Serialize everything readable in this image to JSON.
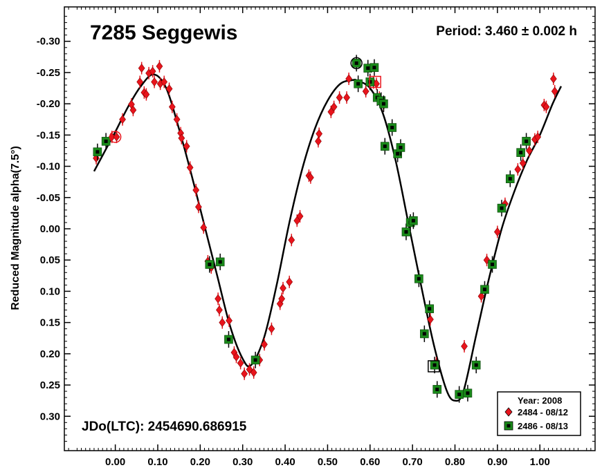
{
  "chart_data": {
    "type": "scatter",
    "title": "7285 Seggewis",
    "period_label": "Period: 3.460 ± 0.002 h",
    "epoch_label": "JDo(LTC): 2454690.686915",
    "ylabel": "Reduced Magnitude alpha(7.5°)",
    "xlabel": "",
    "xlim": [
      -0.12,
      1.13
    ],
    "ylim": [
      -0.355,
      0.355
    ],
    "y_inverted": true,
    "x_ticks": [
      0.0,
      0.1,
      0.2,
      0.3,
      0.4,
      0.5,
      0.6,
      0.7,
      0.8,
      0.9,
      1.0
    ],
    "x_tick_labels": [
      "0.00",
      "0.10",
      "0.20",
      "0.30",
      "0.40",
      "0.50",
      "0.60",
      "0.70",
      "0.80",
      "0.90",
      "1.00"
    ],
    "y_ticks": [
      -0.3,
      -0.25,
      -0.2,
      -0.15,
      -0.1,
      -0.05,
      0.0,
      0.05,
      0.1,
      0.15,
      0.2,
      0.25,
      0.3
    ],
    "y_tick_labels": [
      "-0.30",
      "-0.25",
      "-0.20",
      "-0.15",
      "-0.10",
      "-0.05",
      "0.00",
      "0.05",
      "0.10",
      "0.15",
      "0.20",
      "0.25",
      "0.30"
    ],
    "legend": {
      "title": "Year: 2008",
      "position": "bottom-right",
      "entries": [
        {
          "label": "2484 - 08/12",
          "marker": "diamond",
          "color": "#e8141c"
        },
        {
          "label": "2486 - 08/13",
          "marker": "square",
          "color": "#1a8a1a"
        }
      ]
    },
    "series": [
      {
        "name": "2484 - 08/12",
        "marker": "diamond",
        "color": "#e8141c",
        "points": [
          {
            "x": -0.045,
            "y": -0.113
          },
          {
            "x": -0.008,
            "y": -0.147
          },
          {
            "x": 0.003,
            "y": -0.147
          },
          {
            "x": 0.017,
            "y": -0.175
          },
          {
            "x": 0.038,
            "y": -0.199
          },
          {
            "x": 0.042,
            "y": -0.19
          },
          {
            "x": 0.058,
            "y": -0.235
          },
          {
            "x": 0.068,
            "y": -0.218
          },
          {
            "x": 0.073,
            "y": -0.215
          },
          {
            "x": 0.062,
            "y": -0.257
          },
          {
            "x": 0.079,
            "y": -0.249
          },
          {
            "x": 0.088,
            "y": -0.252
          },
          {
            "x": 0.092,
            "y": -0.235
          },
          {
            "x": 0.104,
            "y": -0.26
          },
          {
            "x": 0.106,
            "y": -0.232
          },
          {
            "x": 0.115,
            "y": -0.235
          },
          {
            "x": 0.127,
            "y": -0.224
          },
          {
            "x": 0.134,
            "y": -0.195
          },
          {
            "x": 0.145,
            "y": -0.175
          },
          {
            "x": 0.154,
            "y": -0.153
          },
          {
            "x": 0.156,
            "y": -0.145
          },
          {
            "x": 0.168,
            "y": -0.132
          },
          {
            "x": 0.176,
            "y": -0.098
          },
          {
            "x": 0.19,
            "y": -0.062
          },
          {
            "x": 0.196,
            "y": -0.035
          },
          {
            "x": 0.208,
            "y": -0.002
          },
          {
            "x": 0.218,
            "y": 0.052
          },
          {
            "x": 0.226,
            "y": 0.062
          },
          {
            "x": 0.242,
            "y": 0.112
          },
          {
            "x": 0.245,
            "y": 0.13
          },
          {
            "x": 0.252,
            "y": 0.15
          },
          {
            "x": 0.268,
            "y": 0.147
          },
          {
            "x": 0.28,
            "y": 0.198
          },
          {
            "x": 0.285,
            "y": 0.205
          },
          {
            "x": 0.295,
            "y": 0.215
          },
          {
            "x": 0.304,
            "y": 0.232
          },
          {
            "x": 0.316,
            "y": 0.225
          },
          {
            "x": 0.326,
            "y": 0.23
          },
          {
            "x": 0.34,
            "y": 0.21
          },
          {
            "x": 0.351,
            "y": 0.185
          },
          {
            "x": 0.368,
            "y": 0.16
          },
          {
            "x": 0.388,
            "y": 0.12
          },
          {
            "x": 0.392,
            "y": 0.112
          },
          {
            "x": 0.395,
            "y": 0.095
          },
          {
            "x": 0.41,
            "y": 0.085
          },
          {
            "x": 0.415,
            "y": 0.018
          },
          {
            "x": 0.428,
            "y": -0.013
          },
          {
            "x": 0.435,
            "y": -0.02
          },
          {
            "x": 0.456,
            "y": -0.085
          },
          {
            "x": 0.46,
            "y": -0.082
          },
          {
            "x": 0.478,
            "y": -0.14
          },
          {
            "x": 0.48,
            "y": -0.152
          },
          {
            "x": 0.508,
            "y": -0.187
          },
          {
            "x": 0.515,
            "y": -0.195
          },
          {
            "x": 0.528,
            "y": -0.21
          },
          {
            "x": 0.545,
            "y": -0.21
          },
          {
            "x": 0.55,
            "y": -0.24
          },
          {
            "x": 0.59,
            "y": -0.22
          },
          {
            "x": 0.608,
            "y": -0.234
          },
          {
            "x": 0.615,
            "y": -0.232
          },
          {
            "x": 0.622,
            "y": -0.21
          },
          {
            "x": 0.632,
            "y": -0.198
          },
          {
            "x": 0.742,
            "y": 0.145
          },
          {
            "x": 0.756,
            "y": 0.215
          },
          {
            "x": 0.822,
            "y": 0.188
          },
          {
            "x": 0.862,
            "y": 0.108
          },
          {
            "x": 0.875,
            "y": 0.05
          },
          {
            "x": 0.9,
            "y": 0.005
          },
          {
            "x": 0.918,
            "y": -0.04
          },
          {
            "x": 0.948,
            "y": -0.095
          },
          {
            "x": 0.96,
            "y": -0.105
          },
          {
            "x": 0.975,
            "y": -0.125
          },
          {
            "x": 0.988,
            "y": -0.143
          },
          {
            "x": 0.995,
            "y": -0.147
          },
          {
            "x": 1.01,
            "y": -0.198
          },
          {
            "x": 1.015,
            "y": -0.195
          },
          {
            "x": 1.032,
            "y": -0.24
          },
          {
            "x": 1.035,
            "y": -0.22
          }
        ]
      },
      {
        "name": "2486 - 08/13",
        "marker": "square",
        "color": "#1a8a1a",
        "points": [
          {
            "x": -0.042,
            "y": -0.123
          },
          {
            "x": -0.022,
            "y": -0.14
          },
          {
            "x": 0.222,
            "y": 0.057
          },
          {
            "x": 0.247,
            "y": 0.053
          },
          {
            "x": 0.267,
            "y": 0.177
          },
          {
            "x": 0.33,
            "y": 0.21
          },
          {
            "x": 0.568,
            "y": -0.265
          },
          {
            "x": 0.572,
            "y": -0.232
          },
          {
            "x": 0.595,
            "y": -0.257
          },
          {
            "x": 0.6,
            "y": -0.235
          },
          {
            "x": 0.61,
            "y": -0.258
          },
          {
            "x": 0.617,
            "y": -0.21
          },
          {
            "x": 0.626,
            "y": -0.205
          },
          {
            "x": 0.632,
            "y": -0.2
          },
          {
            "x": 0.635,
            "y": -0.132
          },
          {
            "x": 0.652,
            "y": -0.162
          },
          {
            "x": 0.665,
            "y": -0.12
          },
          {
            "x": 0.672,
            "y": -0.13
          },
          {
            "x": 0.685,
            "y": 0.005
          },
          {
            "x": 0.695,
            "y": -0.01
          },
          {
            "x": 0.702,
            "y": -0.013
          },
          {
            "x": 0.715,
            "y": 0.08
          },
          {
            "x": 0.728,
            "y": 0.168
          },
          {
            "x": 0.74,
            "y": 0.128
          },
          {
            "x": 0.752,
            "y": 0.218
          },
          {
            "x": 0.758,
            "y": 0.257
          },
          {
            "x": 0.81,
            "y": 0.265
          },
          {
            "x": 0.83,
            "y": 0.263
          },
          {
            "x": 0.85,
            "y": 0.218
          },
          {
            "x": 0.87,
            "y": 0.097
          },
          {
            "x": 0.888,
            "y": 0.057
          },
          {
            "x": 0.91,
            "y": -0.033
          },
          {
            "x": 0.93,
            "y": -0.08
          },
          {
            "x": 0.955,
            "y": -0.122
          },
          {
            "x": 0.968,
            "y": -0.14
          }
        ]
      }
    ],
    "highlighted_points": [
      {
        "series": "2484 - 08/12",
        "x": 0.0,
        "y": -0.147,
        "shape": "circle"
      },
      {
        "series": "2484 - 08/12",
        "x": 0.612,
        "y": -0.235,
        "shape": "square"
      },
      {
        "series": "2486 - 08/13",
        "x": 0.568,
        "y": -0.265,
        "shape": "circle"
      },
      {
        "series": "2486 - 08/13",
        "x": 0.75,
        "y": 0.22,
        "shape": "square"
      }
    ],
    "fit_curve": {
      "name": "Fourier fit",
      "color": "#000000",
      "x": [
        -0.05,
        -0.02,
        0.0,
        0.03,
        0.06,
        0.09,
        0.12,
        0.15,
        0.18,
        0.21,
        0.24,
        0.27,
        0.3,
        0.32,
        0.35,
        0.38,
        0.41,
        0.44,
        0.47,
        0.5,
        0.53,
        0.56,
        0.57,
        0.6,
        0.63,
        0.66,
        0.69,
        0.72,
        0.75,
        0.78,
        0.8,
        0.82,
        0.85,
        0.88,
        0.91,
        0.94,
        0.97,
        1.0,
        1.03,
        1.05
      ],
      "y": [
        -0.092,
        -0.13,
        -0.155,
        -0.195,
        -0.228,
        -0.247,
        -0.225,
        -0.16,
        -0.085,
        -0.005,
        0.075,
        0.155,
        0.208,
        0.218,
        0.175,
        0.09,
        -0.01,
        -0.095,
        -0.16,
        -0.205,
        -0.232,
        -0.238,
        -0.237,
        -0.225,
        -0.185,
        -0.11,
        -0.01,
        0.09,
        0.185,
        0.258,
        0.275,
        0.26,
        0.17,
        0.08,
        0.0,
        -0.06,
        -0.11,
        -0.15,
        -0.2,
        -0.228
      ]
    }
  }
}
